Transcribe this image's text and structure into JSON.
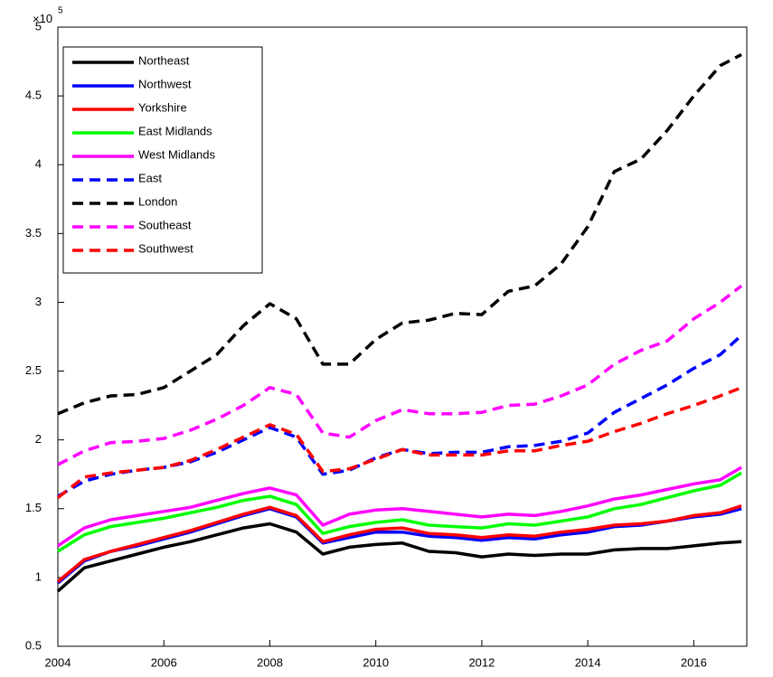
{
  "chart_data": {
    "type": "line",
    "y_multiplier_base": "10",
    "y_multiplier_exponent": "5",
    "x": [
      2004,
      2004.5,
      2005,
      2005.5,
      2006,
      2006.5,
      2007,
      2007.5,
      2008,
      2008.5,
      2009,
      2009.5,
      2010,
      2010.5,
      2011,
      2011.5,
      2012,
      2012.5,
      2013,
      2013.5,
      2014,
      2014.5,
      2015,
      2015.5,
      2016,
      2016.5,
      2016.9
    ],
    "xlim": [
      2004,
      2017
    ],
    "xticks": [
      2004,
      2006,
      2008,
      2010,
      2012,
      2014,
      2016
    ],
    "ylim": [
      0.5,
      5
    ],
    "yticks": [
      0.5,
      1,
      1.5,
      2,
      2.5,
      3,
      3.5,
      4,
      4.5,
      5
    ],
    "grid": false,
    "legend": "upper left",
    "series": [
      {
        "name": "Northeast",
        "color": "#000000",
        "linestyle": "solid",
        "values": [
          0.9,
          1.07,
          1.12,
          1.17,
          1.22,
          1.26,
          1.31,
          1.36,
          1.39,
          1.33,
          1.17,
          1.22,
          1.24,
          1.25,
          1.19,
          1.18,
          1.15,
          1.17,
          1.16,
          1.17,
          1.17,
          1.2,
          1.21,
          1.21,
          1.23,
          1.25,
          1.26
        ]
      },
      {
        "name": "Northwest",
        "color": "#0000ff",
        "linestyle": "solid",
        "values": [
          0.96,
          1.12,
          1.19,
          1.23,
          1.28,
          1.33,
          1.39,
          1.45,
          1.5,
          1.44,
          1.25,
          1.29,
          1.33,
          1.33,
          1.3,
          1.29,
          1.27,
          1.29,
          1.28,
          1.31,
          1.33,
          1.37,
          1.38,
          1.41,
          1.44,
          1.46,
          1.5
        ]
      },
      {
        "name": "Yorkshire",
        "color": "#ff0000",
        "linestyle": "solid",
        "values": [
          0.97,
          1.13,
          1.19,
          1.24,
          1.29,
          1.34,
          1.4,
          1.46,
          1.51,
          1.45,
          1.26,
          1.31,
          1.35,
          1.36,
          1.32,
          1.31,
          1.29,
          1.31,
          1.3,
          1.33,
          1.35,
          1.38,
          1.39,
          1.41,
          1.45,
          1.47,
          1.52
        ]
      },
      {
        "name": "East Midlands",
        "color": "#00ff00",
        "linestyle": "solid",
        "values": [
          1.19,
          1.31,
          1.37,
          1.4,
          1.43,
          1.47,
          1.51,
          1.56,
          1.59,
          1.53,
          1.32,
          1.37,
          1.4,
          1.42,
          1.38,
          1.37,
          1.36,
          1.39,
          1.38,
          1.41,
          1.44,
          1.5,
          1.53,
          1.58,
          1.63,
          1.67,
          1.76
        ]
      },
      {
        "name": "West Midlands",
        "color": "#ff00ff",
        "linestyle": "solid",
        "values": [
          1.23,
          1.36,
          1.42,
          1.45,
          1.48,
          1.51,
          1.56,
          1.61,
          1.65,
          1.6,
          1.38,
          1.46,
          1.49,
          1.5,
          1.48,
          1.46,
          1.44,
          1.46,
          1.45,
          1.48,
          1.52,
          1.57,
          1.6,
          1.64,
          1.68,
          1.71,
          1.8
        ]
      },
      {
        "name": "East",
        "color": "#0000ff",
        "linestyle": "dashed",
        "values": [
          1.59,
          1.7,
          1.75,
          1.78,
          1.8,
          1.84,
          1.91,
          2.0,
          2.09,
          2.02,
          1.75,
          1.78,
          1.87,
          1.93,
          1.9,
          1.91,
          1.91,
          1.95,
          1.96,
          1.99,
          2.05,
          2.2,
          2.3,
          2.4,
          2.52,
          2.62,
          2.76
        ]
      },
      {
        "name": "London",
        "color": "#000000",
        "linestyle": "dashed",
        "values": [
          2.19,
          2.27,
          2.32,
          2.33,
          2.38,
          2.5,
          2.62,
          2.83,
          2.99,
          2.88,
          2.55,
          2.55,
          2.73,
          2.85,
          2.87,
          2.92,
          2.91,
          3.08,
          3.12,
          3.28,
          3.55,
          3.95,
          4.04,
          4.25,
          4.5,
          4.72,
          4.8
        ]
      },
      {
        "name": "Southeast",
        "color": "#ff00ff",
        "linestyle": "dashed",
        "values": [
          1.82,
          1.92,
          1.98,
          1.99,
          2.01,
          2.07,
          2.15,
          2.25,
          2.38,
          2.33,
          2.05,
          2.02,
          2.14,
          2.22,
          2.19,
          2.19,
          2.2,
          2.25,
          2.26,
          2.32,
          2.4,
          2.55,
          2.65,
          2.72,
          2.88,
          3.0,
          3.12
        ]
      },
      {
        "name": "Southwest",
        "color": "#ff0000",
        "linestyle": "dashed",
        "values": [
          1.58,
          1.73,
          1.76,
          1.78,
          1.8,
          1.85,
          1.93,
          2.02,
          2.11,
          2.04,
          1.77,
          1.79,
          1.86,
          1.93,
          1.89,
          1.89,
          1.89,
          1.92,
          1.92,
          1.96,
          1.99,
          2.06,
          2.12,
          2.19,
          2.25,
          2.32,
          2.38
        ]
      }
    ]
  }
}
